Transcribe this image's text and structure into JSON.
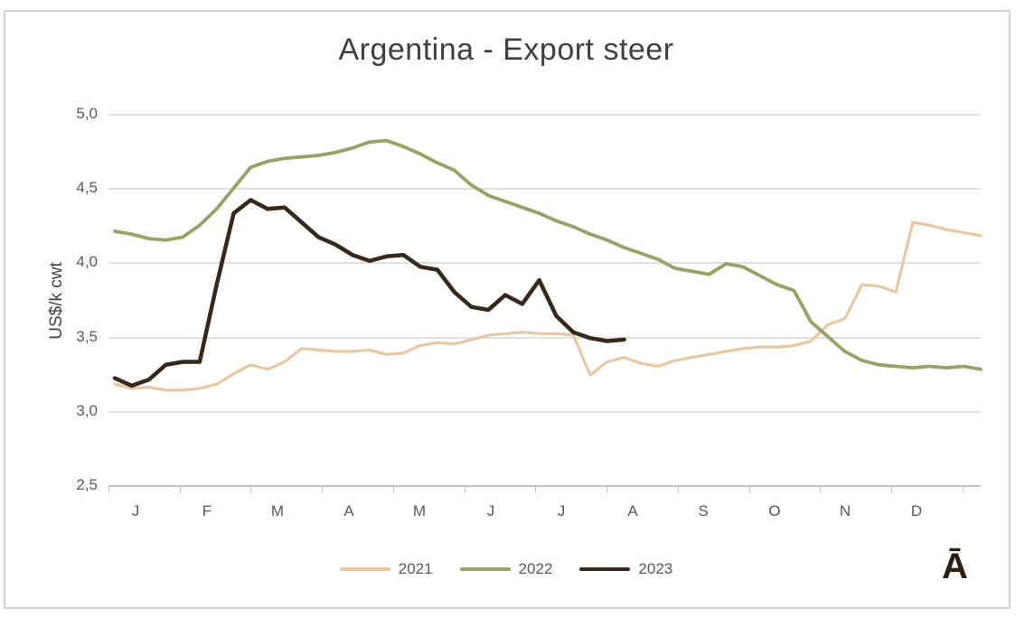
{
  "chart": {
    "title": "Argentina - Export steer",
    "y_axis": {
      "label": "US$/k cwt",
      "ticks": [
        "5,0",
        "4,5",
        "4,0",
        "3,5",
        "3,0",
        "2,5"
      ]
    },
    "x_axis": {
      "labels": [
        "J",
        "F",
        "M",
        "A",
        "M",
        "J",
        "J",
        "A",
        "S",
        "O",
        "N",
        "D"
      ]
    },
    "watermark": "Ā",
    "colors": {
      "grid": "#e0e0e0",
      "axis": "#c2c2c2",
      "tick_text": "#595959",
      "title_text": "#3f3f3f"
    }
  },
  "chart_data": {
    "type": "line",
    "title": "Argentina - Export steer",
    "xlabel": "",
    "ylabel": "US$/k cwt",
    "ylim": [
      2.5,
      5.0
    ],
    "y_tick_step": 0.5,
    "decimal_separator": ",",
    "grid": true,
    "legend_position": "bottom",
    "x_unit": "week of year (Jan–Dec)",
    "month_letters": [
      "J",
      "F",
      "M",
      "A",
      "M",
      "J",
      "J",
      "A",
      "S",
      "O",
      "N",
      "D"
    ],
    "series": [
      {
        "name": "2021",
        "color": "#e9c7a2",
        "values": [
          3.18,
          3.15,
          3.16,
          3.14,
          3.14,
          3.15,
          3.18,
          3.25,
          3.31,
          3.28,
          3.33,
          3.42,
          3.41,
          3.4,
          3.4,
          3.41,
          3.38,
          3.39,
          3.44,
          3.46,
          3.45,
          3.48,
          3.51,
          3.52,
          3.53,
          3.52,
          3.52,
          3.51,
          3.24,
          3.33,
          3.36,
          3.32,
          3.3,
          3.34,
          3.36,
          3.38,
          3.4,
          3.42,
          3.43,
          3.43,
          3.44,
          3.47,
          3.58,
          3.62,
          3.85,
          3.84,
          3.8,
          4.27,
          4.25,
          4.22,
          4.2,
          4.18
        ]
      },
      {
        "name": "2022",
        "color": "#98a267",
        "values": [
          4.21,
          4.19,
          4.16,
          4.15,
          4.17,
          4.25,
          4.36,
          4.5,
          4.64,
          4.68,
          4.7,
          4.71,
          4.72,
          4.74,
          4.77,
          4.81,
          4.82,
          4.78,
          4.73,
          4.67,
          4.62,
          4.52,
          4.45,
          4.41,
          4.37,
          4.33,
          4.28,
          4.24,
          4.19,
          4.15,
          4.1,
          4.06,
          4.02,
          3.96,
          3.94,
          3.92,
          3.99,
          3.97,
          3.91,
          3.85,
          3.81,
          3.6,
          3.5,
          3.4,
          3.34,
          3.31,
          3.3,
          3.29,
          3.3,
          3.29,
          3.3,
          3.28
        ]
      },
      {
        "name": "2023",
        "color": "#35281c",
        "values": [
          3.22,
          3.17,
          3.21,
          3.31,
          3.33,
          3.33,
          3.85,
          4.33,
          4.42,
          4.36,
          4.37,
          4.27,
          4.17,
          4.12,
          4.05,
          4.01,
          4.04,
          4.05,
          3.97,
          3.95,
          3.8,
          3.7,
          3.68,
          3.78,
          3.72,
          3.88,
          3.64,
          3.53,
          3.49,
          3.47,
          3.48
        ]
      }
    ]
  }
}
